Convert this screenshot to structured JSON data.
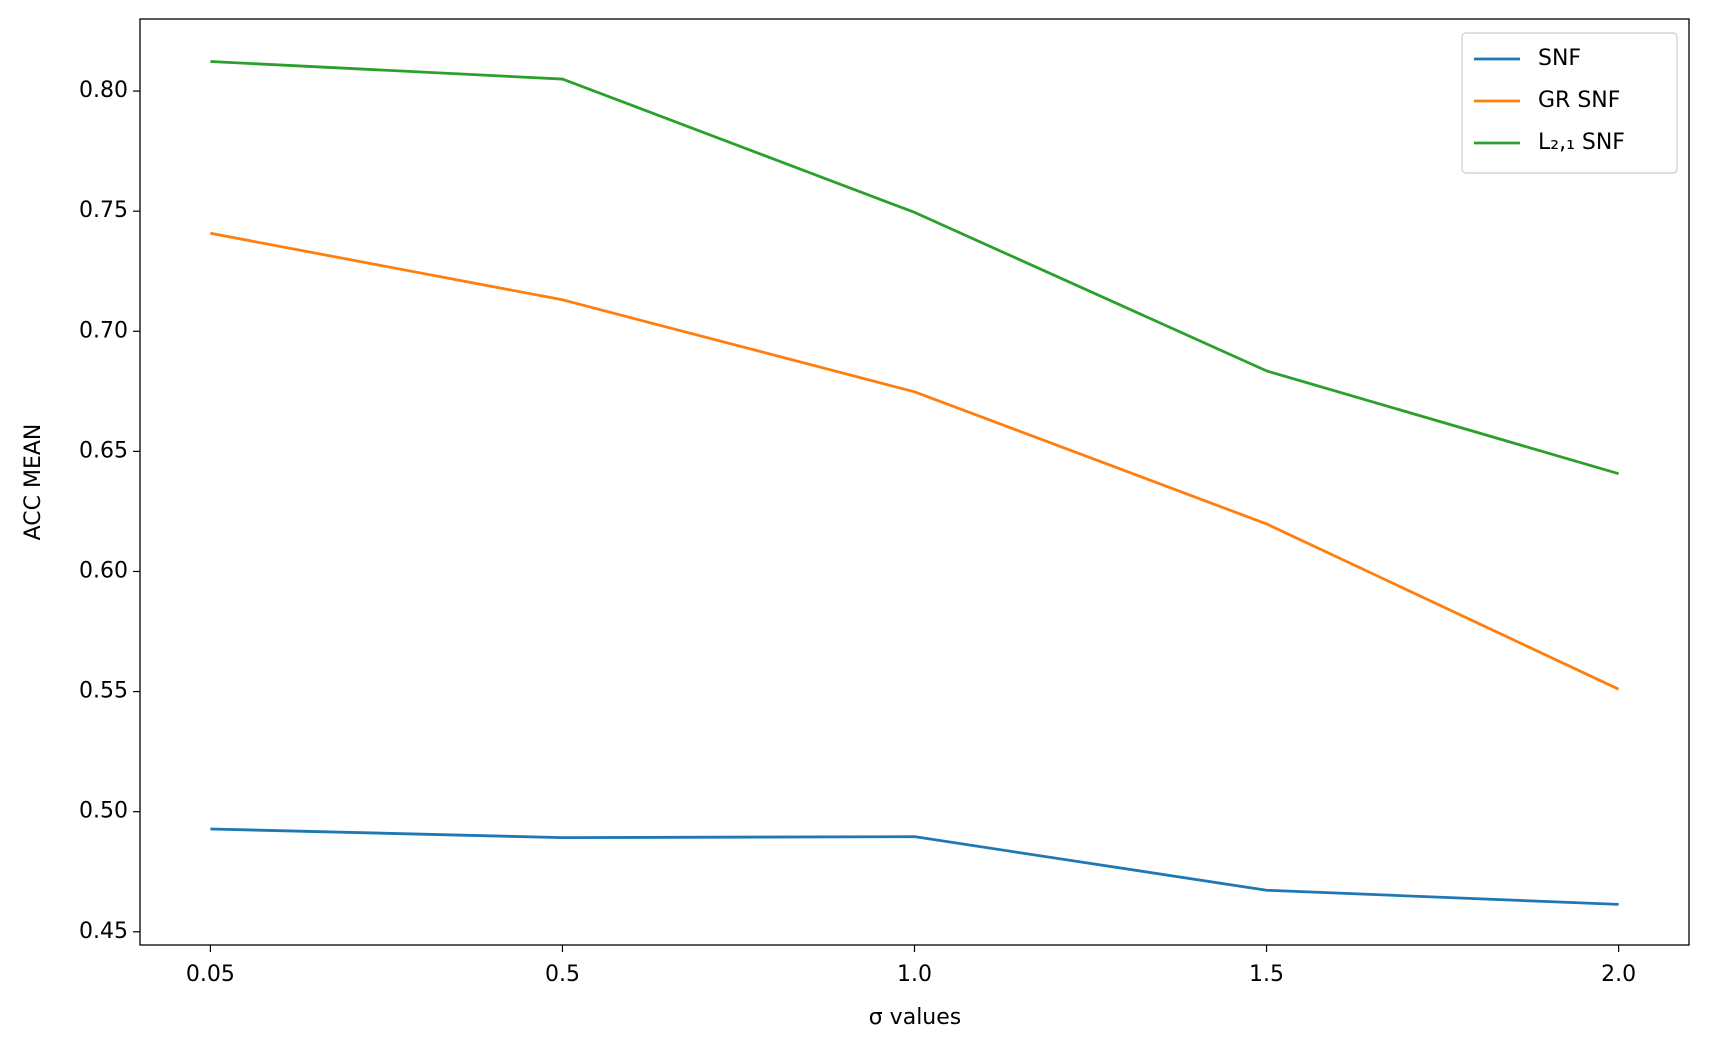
{
  "chart_data": {
    "type": "line",
    "xlabel": "σ values",
    "ylabel": "ACC MEAN",
    "categories": [
      "0.05",
      "0.5",
      "1.0",
      "1.5",
      "2.0"
    ],
    "series": [
      {
        "name": "SNF",
        "color": "#1f77b4",
        "values": [
          0.4928,
          0.4892,
          0.4896,
          0.4673,
          0.4614
        ]
      },
      {
        "name": "GR SNF",
        "color": "#ff7f0e",
        "values": [
          0.7408,
          0.7131,
          0.6748,
          0.6198,
          0.551
        ]
      },
      {
        "name": "L₂,₁ SNF",
        "color": "#2ca02c",
        "values": [
          0.8123,
          0.805,
          0.7495,
          0.6835,
          0.6407
        ]
      }
    ],
    "ylim": [
      0.4445,
      0.83
    ],
    "yticks": [
      0.45,
      {
        "value": 0.5,
        "label": "0.50"
      },
      0.55,
      {
        "value": 0.6,
        "label": "0.60"
      },
      0.65,
      {
        "value": 0.7,
        "label": "0.70"
      },
      0.75,
      {
        "value": 0.8,
        "label": "0.80"
      }
    ],
    "legend": "upper right",
    "grid": false
  }
}
